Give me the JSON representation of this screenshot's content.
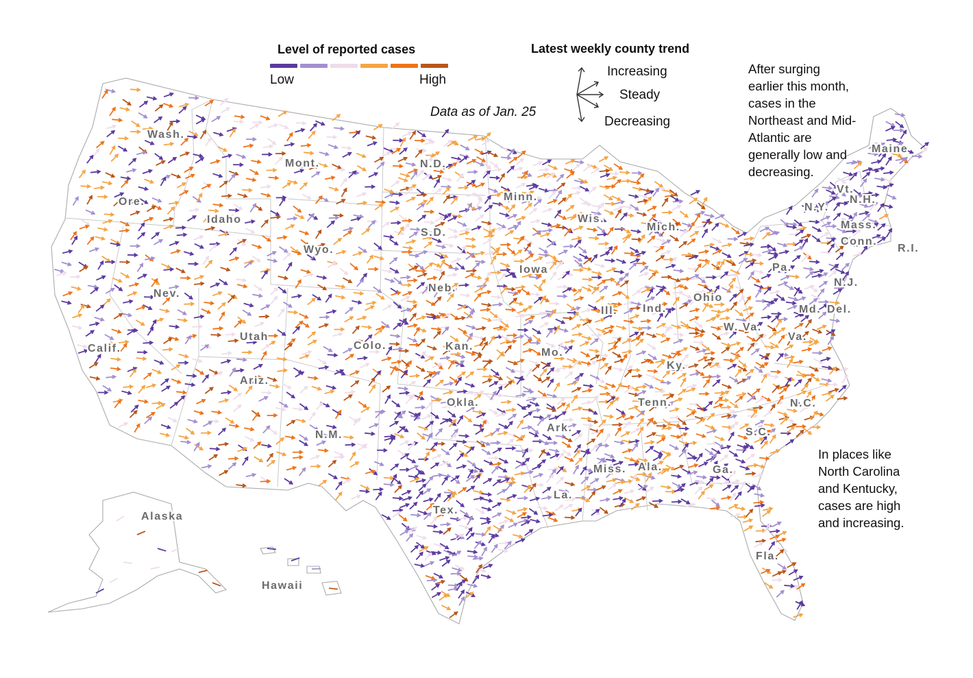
{
  "legend": {
    "level_title": "Level of reported cases",
    "low_label": "Low",
    "high_label": "High",
    "level_colors": [
      "#5b3a9e",
      "#a38fd0",
      "#efdcea",
      "#f5a444",
      "#ee7318",
      "#b8561a"
    ],
    "trend_title": "Latest weekly county trend",
    "trend_increasing": "Increasing",
    "trend_steady": "Steady",
    "trend_decreasing": "Decreasing"
  },
  "data_note": "Data as of Jan. 25",
  "annotations": {
    "northeast": [
      "After surging",
      "earlier this month,",
      "cases in the",
      "Northeast and Mid-",
      "Atlantic are",
      "generally low and",
      "decreasing."
    ],
    "southeast": [
      "In places like",
      "North Carolina",
      "and Kentucky,",
      "cases are high",
      "and increasing."
    ]
  },
  "map": {
    "states": [
      {
        "key": "wa",
        "name": "Wash."
      },
      {
        "key": "or",
        "name": "Ore."
      },
      {
        "key": "ca",
        "name": "Calif."
      },
      {
        "key": "nv",
        "name": "Nev."
      },
      {
        "key": "id",
        "name": "Idaho"
      },
      {
        "key": "mt",
        "name": "Mont."
      },
      {
        "key": "wy",
        "name": "Wyo."
      },
      {
        "key": "ut",
        "name": "Utah"
      },
      {
        "key": "az",
        "name": "Ariz."
      },
      {
        "key": "co",
        "name": "Colo."
      },
      {
        "key": "nm",
        "name": "N.M."
      },
      {
        "key": "nd",
        "name": "N.D."
      },
      {
        "key": "sd",
        "name": "S.D."
      },
      {
        "key": "ne",
        "name": "Neb."
      },
      {
        "key": "ks",
        "name": "Kan."
      },
      {
        "key": "ok",
        "name": "Okla."
      },
      {
        "key": "tx",
        "name": "Tex."
      },
      {
        "key": "mn",
        "name": "Minn."
      },
      {
        "key": "ia",
        "name": "Iowa"
      },
      {
        "key": "mo",
        "name": "Mo."
      },
      {
        "key": "ar",
        "name": "Ark."
      },
      {
        "key": "la",
        "name": "La."
      },
      {
        "key": "wi",
        "name": "Wis."
      },
      {
        "key": "il",
        "name": "Ill."
      },
      {
        "key": "mi",
        "name": "Mich."
      },
      {
        "key": "in",
        "name": "Ind."
      },
      {
        "key": "oh",
        "name": "Ohio"
      },
      {
        "key": "ky",
        "name": "Ky."
      },
      {
        "key": "tn",
        "name": "Tenn."
      },
      {
        "key": "ms",
        "name": "Miss."
      },
      {
        "key": "al",
        "name": "Ala."
      },
      {
        "key": "ga",
        "name": "Ga."
      },
      {
        "key": "fl",
        "name": "Fla."
      },
      {
        "key": "sc",
        "name": "S.C."
      },
      {
        "key": "nc",
        "name": "N.C."
      },
      {
        "key": "va",
        "name": "Va."
      },
      {
        "key": "wv",
        "name": "W. Va."
      },
      {
        "key": "pa",
        "name": "Pa."
      },
      {
        "key": "ny",
        "name": "N.Y."
      },
      {
        "key": "vt",
        "name": "Vt."
      },
      {
        "key": "nh",
        "name": "N.H."
      },
      {
        "key": "me",
        "name": "Maine"
      },
      {
        "key": "ma",
        "name": "Mass."
      },
      {
        "key": "ct",
        "name": "Conn."
      },
      {
        "key": "ri",
        "name": "R.I."
      },
      {
        "key": "nj",
        "name": "N.J."
      },
      {
        "key": "de",
        "name": "Del."
      },
      {
        "key": "md",
        "name": "Md."
      },
      {
        "key": "ak",
        "name": "Alaska"
      },
      {
        "key": "hi",
        "name": "Hawaii"
      }
    ]
  }
}
